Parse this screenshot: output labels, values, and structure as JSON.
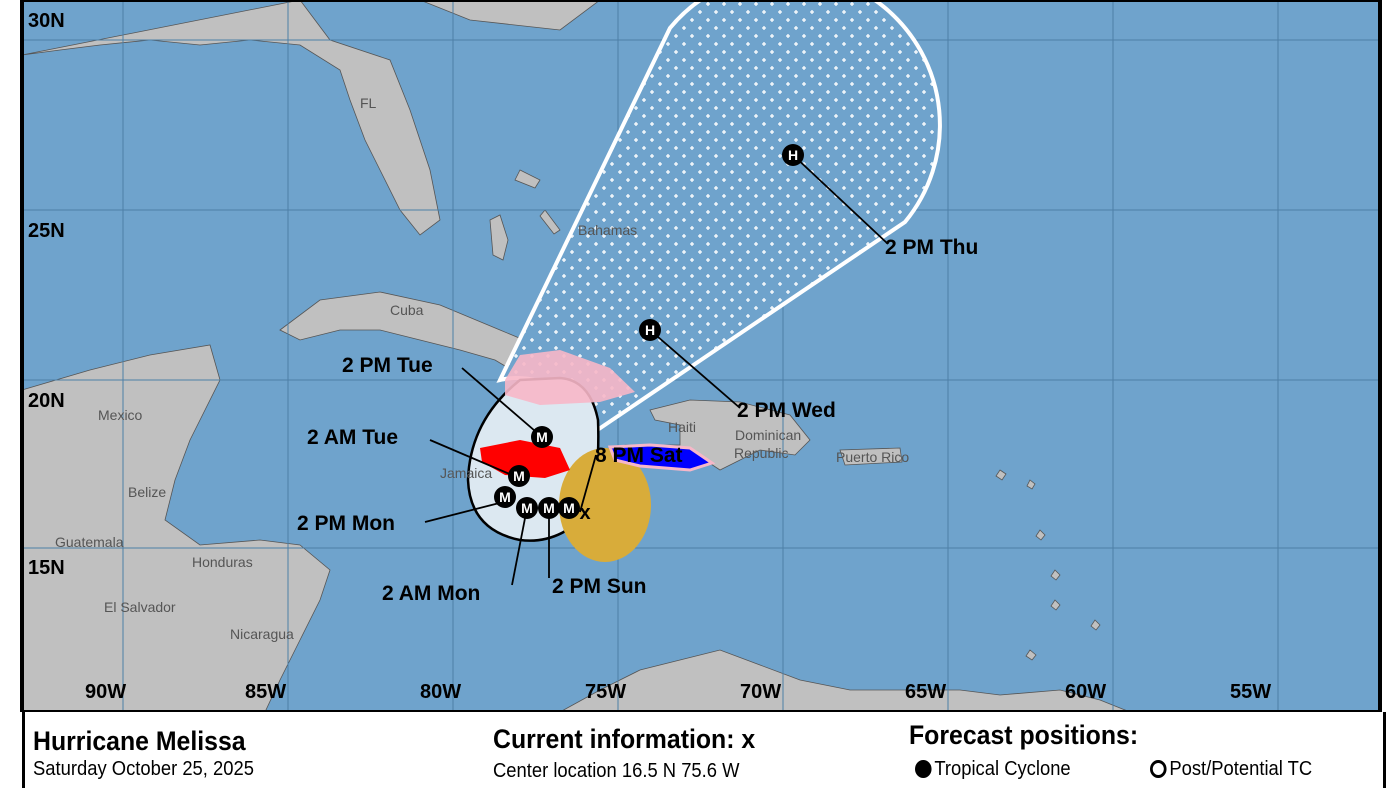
{
  "storm": {
    "name": "Hurricane Melissa",
    "date": "Saturday October 25, 2025"
  },
  "current": {
    "heading": "Current information:",
    "marker": "x",
    "center_location": "Center location 16.5 N 75.6 W"
  },
  "forecast_legend": {
    "heading": "Forecast positions:",
    "tropical_cyclone": "Tropical Cyclone",
    "post_potential": "Post/Potential TC"
  },
  "grid": {
    "longitudes": [
      "90W",
      "85W",
      "80W",
      "75W",
      "70W",
      "65W",
      "60W",
      "55W"
    ],
    "latitudes": [
      "30N",
      "25N",
      "20N",
      "15N"
    ]
  },
  "places": {
    "fl": "FL",
    "bahamas": "Bahamas",
    "cuba": "Cuba",
    "mexico": "Mexico",
    "belize": "Belize",
    "guatemala": "Guatemala",
    "honduras": "Honduras",
    "el_salvador": "El Salvador",
    "nicaragua": "Nicaragua",
    "jamaica": "Jamaica",
    "haiti": "Haiti",
    "dominican": "Dominican",
    "republic": "Republic",
    "puerto_rico": "Puerto Rico"
  },
  "track": [
    {
      "label": "8 PM Sat",
      "symbol": "x"
    },
    {
      "label": "2 PM Sun",
      "symbol": "M"
    },
    {
      "label": "2 AM Mon",
      "symbol": "M"
    },
    {
      "label": "2 PM Mon",
      "symbol": "M"
    },
    {
      "label": "2 AM Tue",
      "symbol": "M"
    },
    {
      "label": "2 PM Tue",
      "symbol": "M"
    },
    {
      "label": "2 PM Wed",
      "symbol": "H"
    },
    {
      "label": "2 PM Thu",
      "symbol": "H"
    }
  ],
  "extra_points": [
    {
      "symbol": "M"
    },
    {
      "symbol": "M"
    }
  ],
  "colors": {
    "ocean": "#6fa3cc",
    "land": "#c0c0c0",
    "cone_near": "#dce8f1",
    "hurricane_warning": "#ff0000",
    "tropical_storm_warning": "#0000ff",
    "hurricane_watch": "#f7b7c8",
    "tropical_storm_watch": "#d8ac3a"
  }
}
